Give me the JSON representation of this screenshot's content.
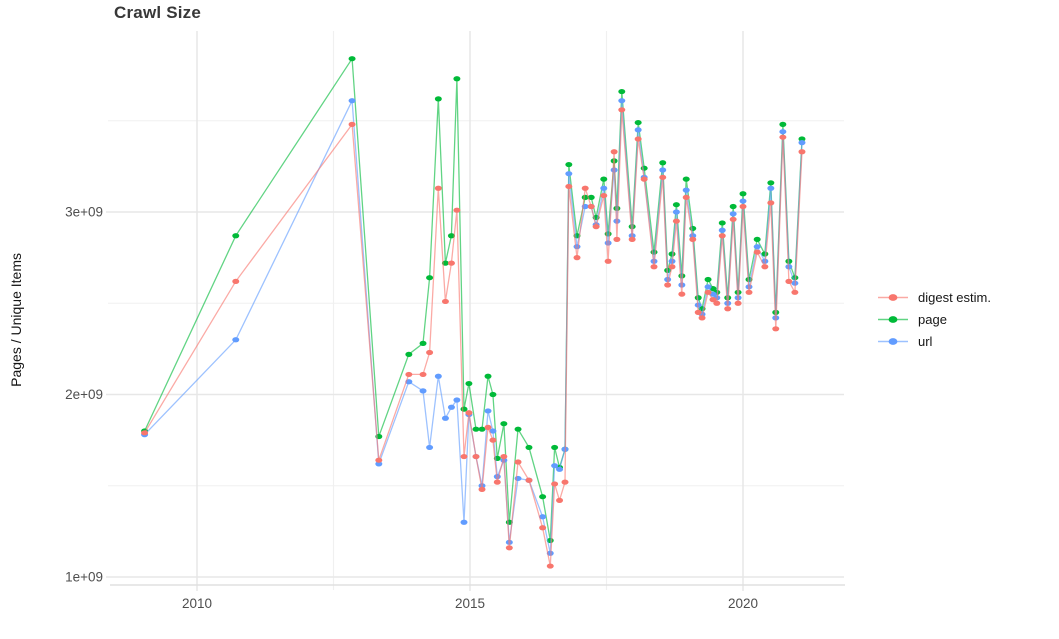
{
  "title": "Crawl Size",
  "chart_data": {
    "type": "line",
    "title": "Crawl Size",
    "xlabel": "",
    "ylabel": "Pages / Unique Items",
    "grid": true,
    "legend_position": "right-center",
    "x_axis": {
      "tick_labels": [
        "2010",
        "2015",
        "2020"
      ],
      "tick_values": [
        2010,
        2015,
        2020
      ],
      "minor_tick_values": [
        2012.5,
        2017.5
      ],
      "range": [
        2008.4,
        2021.8
      ]
    },
    "y_axis": {
      "tick_labels": [
        "1e+09",
        "2e+09",
        "3e+09"
      ],
      "tick_values_billions": [
        1,
        2,
        3
      ],
      "minor_tick_values_billions": [
        1.5,
        2.5,
        3.5
      ],
      "range_billions": [
        0.95,
        3.99
      ]
    },
    "x_years": [
      2009.04,
      2010.71,
      2012.84,
      2013.33,
      2013.88,
      2014.14,
      2014.26,
      2014.42,
      2014.55,
      2014.66,
      2014.76,
      2014.89,
      2014.98,
      2015.11,
      2015.22,
      2015.33,
      2015.42,
      2015.5,
      2015.62,
      2015.72,
      2015.88,
      2016.08,
      2016.33,
      2016.47,
      2016.55,
      2016.64,
      2016.74,
      2016.81,
      2016.96,
      2017.11,
      2017.22,
      2017.31,
      2017.45,
      2017.53,
      2017.64,
      2017.69,
      2017.78,
      2017.97,
      2018.08,
      2018.19,
      2018.37,
      2018.53,
      2018.62,
      2018.7,
      2018.78,
      2018.88,
      2018.96,
      2019.08,
      2019.18,
      2019.25,
      2019.36,
      2019.45,
      2019.52,
      2019.62,
      2019.72,
      2019.82,
      2019.91,
      2020.0,
      2020.11,
      2020.26,
      2020.4,
      2020.51,
      2020.6,
      2020.73,
      2020.84,
      2020.95,
      2021.08
    ],
    "series": [
      {
        "name": "digest estim.",
        "color": "#F8766D",
        "values_billions": [
          1.79,
          2.62,
          3.48,
          1.64,
          2.11,
          2.11,
          2.23,
          3.13,
          2.51,
          2.72,
          3.01,
          1.66,
          1.9,
          1.66,
          1.48,
          1.82,
          1.75,
          1.52,
          1.66,
          1.16,
          1.63,
          1.53,
          1.27,
          1.06,
          1.51,
          1.42,
          1.52,
          3.14,
          2.75,
          3.13,
          3.03,
          2.92,
          3.09,
          2.73,
          3.33,
          2.85,
          3.56,
          2.85,
          3.4,
          3.18,
          2.7,
          3.19,
          2.6,
          2.7,
          2.95,
          2.55,
          3.08,
          2.85,
          2.45,
          2.42,
          2.56,
          2.52,
          2.5,
          2.87,
          2.47,
          2.96,
          2.5,
          3.03,
          2.56,
          2.78,
          2.7,
          3.05,
          2.36,
          3.41,
          2.62,
          2.56,
          3.33
        ]
      },
      {
        "name": "page",
        "color": "#00BA38",
        "values_billions": [
          1.8,
          2.87,
          3.84,
          1.77,
          2.22,
          2.28,
          2.64,
          3.62,
          2.72,
          2.87,
          3.73,
          1.92,
          2.06,
          1.81,
          1.81,
          2.1,
          2.0,
          1.65,
          1.84,
          1.3,
          1.81,
          1.71,
          1.44,
          1.2,
          1.71,
          1.6,
          1.7,
          3.26,
          2.87,
          3.08,
          3.08,
          2.97,
          3.18,
          2.88,
          3.28,
          3.02,
          3.66,
          2.92,
          3.49,
          3.24,
          2.78,
          3.27,
          2.68,
          2.77,
          3.04,
          2.65,
          3.18,
          2.91,
          2.53,
          2.47,
          2.63,
          2.58,
          2.56,
          2.94,
          2.53,
          3.03,
          2.56,
          3.1,
          2.63,
          2.85,
          2.77,
          3.16,
          2.45,
          3.48,
          2.73,
          2.64,
          3.4
        ]
      },
      {
        "name": "url",
        "color": "#619CFF",
        "values_billions": [
          1.78,
          2.3,
          3.61,
          1.62,
          2.07,
          2.02,
          1.71,
          2.1,
          1.87,
          1.93,
          1.97,
          1.3,
          1.89,
          1.66,
          1.5,
          1.91,
          1.8,
          1.55,
          1.64,
          1.19,
          1.54,
          1.53,
          1.33,
          1.13,
          1.61,
          1.59,
          1.7,
          3.21,
          2.81,
          3.03,
          3.03,
          2.93,
          3.13,
          2.83,
          3.23,
          2.95,
          3.61,
          2.87,
          3.45,
          3.19,
          2.73,
          3.23,
          2.63,
          2.73,
          3.0,
          2.6,
          3.12,
          2.87,
          2.49,
          2.44,
          2.59,
          2.55,
          2.53,
          2.9,
          2.5,
          2.99,
          2.53,
          3.06,
          2.59,
          2.81,
          2.73,
          3.13,
          2.42,
          3.44,
          2.7,
          2.61,
          3.38
        ]
      }
    ],
    "colors": {
      "grid_major": "#E7E7E7",
      "grid_minor": "#F0F0F0",
      "axis_line": "#E0E0E0",
      "tick_text": "#4E4E4E"
    }
  }
}
